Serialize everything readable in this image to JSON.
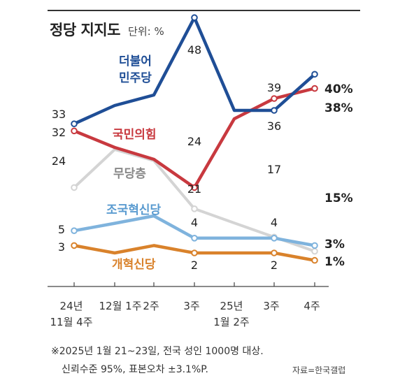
{
  "header": {
    "title": "정당 지지도",
    "unit": "단위: %"
  },
  "footnote": {
    "line1": "※2025년 1월 21~23일, 전국 성인 1000명 대상.",
    "line2": "신뢰수준 95%, 표본오차 ±3.1%P.",
    "source": "자료=한국갤럽"
  },
  "chart_data": {
    "type": "line",
    "x": [
      "24년 11월 4주",
      "12월 1주",
      "2주",
      "3주",
      "25년 1월 2주",
      "3주",
      "4주"
    ],
    "x_tick_lines": [
      [
        "24년",
        "11월 4주"
      ],
      [
        "12월 1주"
      ],
      [
        "2주"
      ],
      [
        "3주"
      ],
      [
        "25년",
        "1월 2주"
      ],
      [
        "3주"
      ],
      [
        "4주"
      ]
    ],
    "series": [
      {
        "name": "더불어 민주당",
        "label_lines": [
          "더불어",
          "민주당"
        ],
        "color": "#1f4e96",
        "values": [
          33,
          null,
          36,
          48,
          36,
          36,
          40
        ],
        "labels": {
          "0": "33",
          "3": "48",
          "5": "36",
          "6": "40%"
        }
      },
      {
        "name": "국민의힘",
        "label_lines": [
          "국민의힘"
        ],
        "color": "#c8393f",
        "values": [
          32,
          27,
          25,
          24,
          33,
          39,
          38
        ],
        "labels": {
          "0": "32",
          "3": "24",
          "5": "39",
          "6": "38%"
        }
      },
      {
        "name": "무당층",
        "label_lines": [
          "무당층"
        ],
        "color": "#d4d4d4",
        "values": [
          24,
          26,
          null,
          21,
          19,
          17,
          15
        ],
        "labels": {
          "0": "24",
          "3": "21",
          "5": "17",
          "6": "15%"
        }
      },
      {
        "name": "조국혁신당",
        "label_lines": [
          "조국혁신당"
        ],
        "color": "#7fb3dd",
        "values": [
          5,
          6,
          7,
          4,
          4,
          4,
          3
        ],
        "labels": {
          "0": "5",
          "3": "4",
          "5": "4",
          "6": "3%"
        }
      },
      {
        "name": "개혁신당",
        "label_lines": [
          "개혁신당"
        ],
        "color": "#d9822b",
        "values": [
          3,
          2,
          3,
          2,
          2,
          2,
          1
        ],
        "labels": {
          "0": "3",
          "3": "2",
          "5": "2",
          "6": "1%"
        }
      }
    ]
  }
}
